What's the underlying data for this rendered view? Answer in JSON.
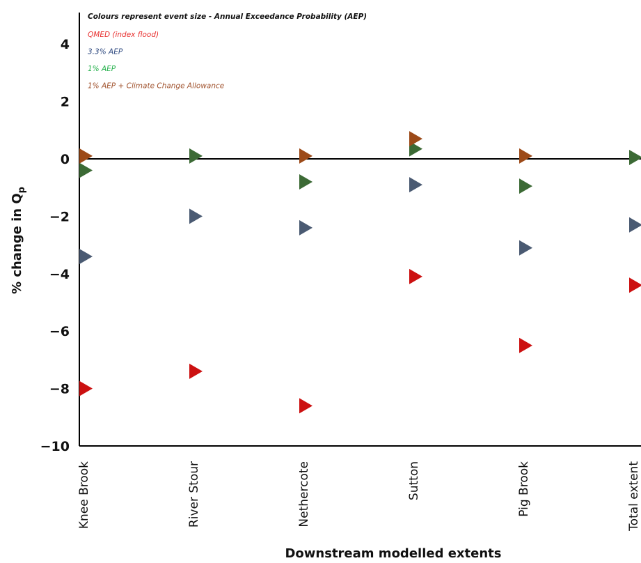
{
  "chart_data": {
    "type": "scatter",
    "marker": "right-pointing-triangle",
    "xlabel": "Downstream modelled extents",
    "ylabel": "% change in Q",
    "ylabel_subscript": "p",
    "categories": [
      "Knee Brook",
      "River Stour",
      "Nethercote",
      "Sutton",
      "Pig Brook",
      "Total extent"
    ],
    "ylim": [
      -10,
      5
    ],
    "yticks": [
      {
        "value": 4,
        "label": "4"
      },
      {
        "value": 2,
        "label": "2"
      },
      {
        "value": 0,
        "label": "0"
      },
      {
        "value": -2,
        "label": "−2"
      },
      {
        "value": -4,
        "label": "−4"
      },
      {
        "value": -6,
        "label": "−6"
      },
      {
        "value": -8,
        "label": "−8"
      },
      {
        "value": -10,
        "label": "−10"
      }
    ],
    "zero_line": true,
    "grid": false,
    "legend_position": "top-left",
    "legend_title": "Colours represent event size - Annual Exceedance Probability (AEP)",
    "series": [
      {
        "name": "QMED (index flood)",
        "color": "#cc1111",
        "text_color": "#e8302f",
        "values": [
          -8.0,
          -7.4,
          -8.6,
          -4.1,
          -6.5,
          -4.4
        ]
      },
      {
        "name": "3.3% AEP",
        "color": "#4a5a72",
        "text_color": "#2f4a80",
        "values": [
          -3.4,
          -2.0,
          -2.4,
          -0.9,
          -3.1,
          -2.3
        ]
      },
      {
        "name": "1% AEP",
        "color": "#3c6a35",
        "text_color": "#23b04a",
        "values": [
          -0.4,
          0.1,
          -0.8,
          0.35,
          -0.95,
          0.05
        ]
      },
      {
        "name": "1% AEP + Climate Change Allowance",
        "color": "#9c4a18",
        "text_color": "#a0522d",
        "values": [
          0.1,
          null,
          0.1,
          0.7,
          0.1,
          null
        ]
      }
    ]
  }
}
